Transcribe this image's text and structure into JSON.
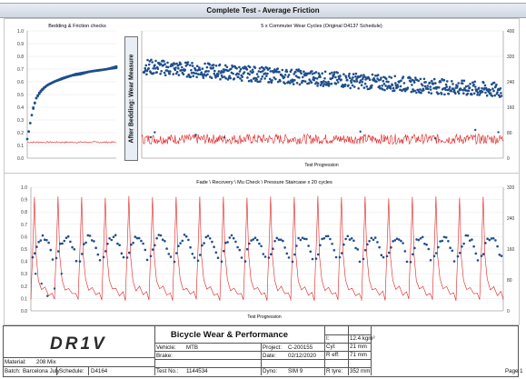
{
  "title": "Complete Test - Average Friction",
  "side_label": "After Bedding: Wear Measure",
  "chart_data": [
    {
      "type": "scatter",
      "title": "Bedding & Friction checks",
      "y_ticks": [
        "1.0",
        "0.9",
        "0.8",
        "0.7",
        "0.6",
        "0.5",
        "0.4",
        "0.3",
        "0.2",
        "0.1",
        "0.0"
      ],
      "ylim": [
        0,
        1
      ],
      "series": [
        {
          "role": "friction",
          "color": "#1f4e8c",
          "x": [
            0,
            2,
            4,
            6,
            8,
            10,
            14,
            18,
            24,
            30,
            38,
            46,
            54,
            62,
            70,
            80,
            90,
            100
          ],
          "y": [
            0.15,
            0.22,
            0.3,
            0.37,
            0.42,
            0.47,
            0.52,
            0.55,
            0.58,
            0.6,
            0.62,
            0.64,
            0.66,
            0.67,
            0.68,
            0.69,
            0.7,
            0.72
          ]
        },
        {
          "role": "friction",
          "color": "#1f4e8c",
          "x": [
            6,
            10,
            16,
            22,
            30,
            40,
            50,
            60,
            70,
            80,
            90,
            100
          ],
          "y": [
            0.38,
            0.47,
            0.53,
            0.57,
            0.6,
            0.63,
            0.65,
            0.66,
            0.68,
            0.69,
            0.7,
            0.71
          ]
        },
        {
          "role": "temperature",
          "color": "#e02020",
          "x": [
            0,
            10,
            20,
            30,
            40,
            50,
            60,
            70,
            80,
            90,
            100
          ],
          "y": [
            0.12,
            0.13,
            0.12,
            0.13,
            0.12,
            0.12,
            0.13,
            0.12,
            0.13,
            0.12,
            0.12
          ]
        }
      ]
    },
    {
      "type": "scatter",
      "title": "5 x Commuter Wear Cycles (Original D4137 Schedule)",
      "xlabel": "Test Progression",
      "y_right_ticks": [
        "400",
        "320",
        "240",
        "160",
        "80",
        "0"
      ],
      "ylim": [
        0,
        1
      ],
      "y2lim": [
        0,
        400
      ],
      "series": [
        {
          "role": "friction",
          "color": "#1f4e8c",
          "trend_start": 0.72,
          "trend_end": 0.53,
          "spread": 0.06,
          "count": 700
        },
        {
          "role": "temperature",
          "color": "#e02020",
          "mean": 0.15,
          "noise": 0.04,
          "count": 520
        }
      ]
    },
    {
      "type": "line",
      "title": "Fade \\ Recovery \\ Mu Check \\ Pressure Staircase x 20 cycles",
      "xlabel": "Test Progression",
      "y_ticks": [
        "1.0",
        "0.9",
        "0.8",
        "0.7",
        "0.6",
        "0.5",
        "0.4",
        "0.3",
        "0.2",
        "0.1",
        "0.0"
      ],
      "y_right_ticks": [
        "320",
        "240",
        "160",
        "80",
        "0"
      ],
      "ylim": [
        0,
        1
      ],
      "y2lim": [
        0,
        320
      ],
      "cycles": 20,
      "series": [
        {
          "role": "friction",
          "color": "#1f4e8c",
          "high": 0.6,
          "low": 0.42
        },
        {
          "role": "temperature",
          "color": "#e02020",
          "peak": 0.92,
          "base": 0.07
        }
      ]
    }
  ],
  "footer": {
    "logo": "DR1V",
    "report_title": "Bicycle Wear & Performance",
    "material_label": "Material:",
    "material_value": "208 Mix",
    "batch_label": "Batch:",
    "batch_value": "Barcelona July",
    "schedule_label": "Schedule:",
    "schedule_value": "D4164",
    "vehicle_label": "Vehicle:",
    "vehicle_value": "MTB",
    "brake_label": "Brake:",
    "brake_value": "",
    "testno_label": "Test No.:",
    "testno_value": "1144534",
    "project_label": "Project:",
    "project_value": "C-200155",
    "date_label": "Date:",
    "date_value": "02/12/2020",
    "dyno_label": "Dyno:",
    "dyno_value": "SIM 9",
    "i_label": "I:",
    "i_value": "12.4 kgm²",
    "cyl_label": "Cyl:",
    "cyl_value": "21 mm",
    "reff_label": "R eff:",
    "reff_value": "71 mm",
    "rtyre_label": "R tyre:",
    "rtyre_value": "352 mm",
    "page": "Page 1"
  }
}
